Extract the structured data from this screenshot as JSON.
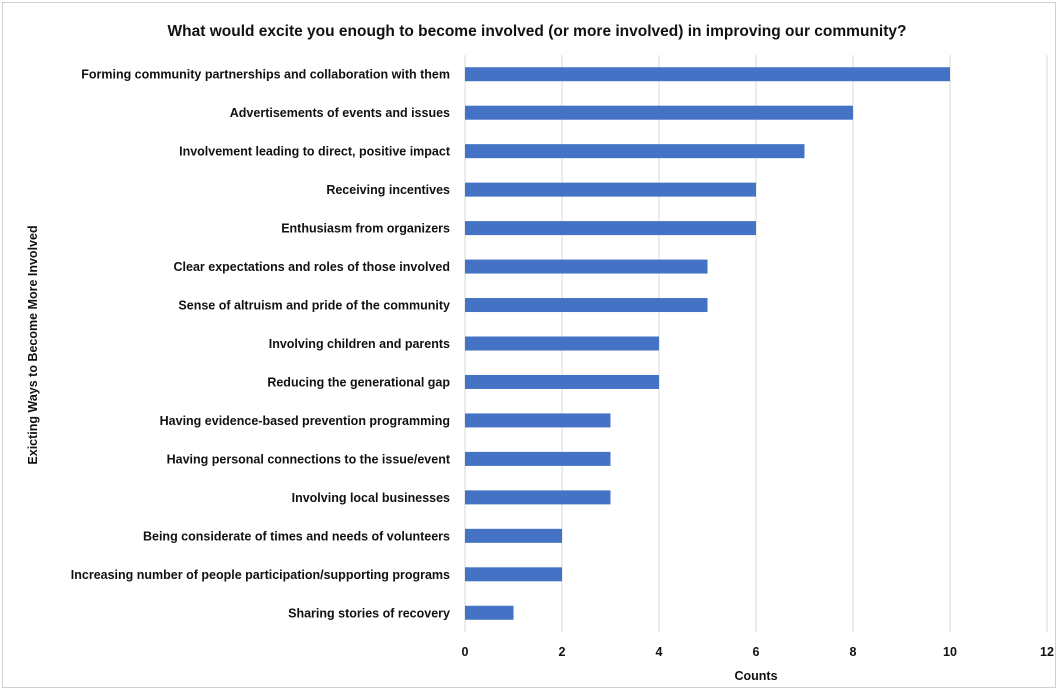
{
  "chart_data": {
    "type": "bar",
    "orientation": "horizontal",
    "title": "What would excite you enough to become involved (or more involved) in improving our community?",
    "xlabel": "Counts",
    "ylabel": "Exicting Ways to Become More Involved",
    "xlim": [
      0,
      12
    ],
    "xticks": [
      "0",
      "2",
      "4",
      "6",
      "8",
      "10",
      "12"
    ],
    "grid": true,
    "legend": "none",
    "bar_color": "#4472c4",
    "categories": [
      "Forming community partnerships and collaboration with them",
      "Advertisements of events and issues",
      "Involvement leading to direct, positive impact",
      "Receiving incentives",
      "Enthusiasm from organizers",
      "Clear expectations and roles of those involved",
      "Sense of altruism and pride of the community",
      "Involving children and parents",
      "Reducing the generational gap",
      "Having evidence-based prevention programming",
      "Having personal connections to the issue/event",
      "Involving local businesses",
      "Being considerate of times and needs of volunteers",
      "Increasing number of people participation/supporting programs",
      "Sharing stories of recovery"
    ],
    "values": [
      10,
      8,
      7,
      6,
      6,
      5,
      5,
      4,
      4,
      3,
      3,
      3,
      2,
      2,
      1
    ]
  }
}
